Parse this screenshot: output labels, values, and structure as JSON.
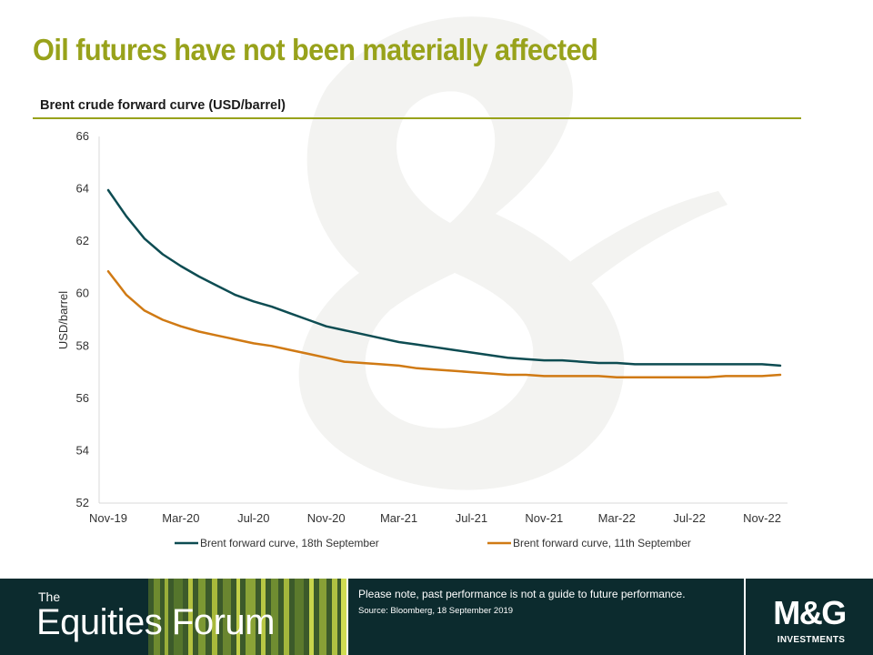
{
  "slide": {
    "title": "Oil futures have not been materially affected",
    "chart_heading": "Brent crude forward curve (USD/barrel)"
  },
  "chart_data": {
    "type": "line",
    "ylabel": "USD/barrel",
    "ylim": [
      52,
      66
    ],
    "yticks": [
      52,
      54,
      56,
      58,
      60,
      62,
      64,
      66
    ],
    "xticks": [
      "Nov-19",
      "Mar-20",
      "Jul-20",
      "Nov-20",
      "Mar-21",
      "Jul-21",
      "Nov-21",
      "Mar-22",
      "Jul-22",
      "Nov-22"
    ],
    "x": [
      "Nov-19",
      "Dec-19",
      "Jan-20",
      "Feb-20",
      "Mar-20",
      "Apr-20",
      "May-20",
      "Jun-20",
      "Jul-20",
      "Aug-20",
      "Sep-20",
      "Oct-20",
      "Nov-20",
      "Dec-20",
      "Jan-21",
      "Feb-21",
      "Mar-21",
      "Apr-21",
      "May-21",
      "Jun-21",
      "Jul-21",
      "Aug-21",
      "Sep-21",
      "Oct-21",
      "Nov-21",
      "Dec-21",
      "Jan-22",
      "Feb-22",
      "Mar-22",
      "Apr-22",
      "May-22",
      "Jun-22",
      "Jul-22",
      "Aug-22",
      "Sep-22",
      "Oct-22",
      "Nov-22",
      "Dec-22"
    ],
    "series": [
      {
        "name": "Brent forward curve, 18th September",
        "color": "#0d4c52",
        "values": [
          63.95,
          62.95,
          62.1,
          61.5,
          61.05,
          60.65,
          60.3,
          59.95,
          59.7,
          59.5,
          59.25,
          59.0,
          58.75,
          58.6,
          58.45,
          58.3,
          58.15,
          58.05,
          57.95,
          57.85,
          57.75,
          57.65,
          57.55,
          57.5,
          57.45,
          57.45,
          57.4,
          57.35,
          57.35,
          57.3,
          57.3,
          57.3,
          57.3,
          57.3,
          57.3,
          57.3,
          57.3,
          57.25
        ]
      },
      {
        "name": "Brent forward curve, 11th September",
        "color": "#d07a14",
        "values": [
          60.85,
          59.95,
          59.35,
          59.0,
          58.75,
          58.55,
          58.4,
          58.25,
          58.1,
          58.0,
          57.85,
          57.7,
          57.55,
          57.4,
          57.35,
          57.3,
          57.25,
          57.15,
          57.1,
          57.05,
          57.0,
          56.95,
          56.9,
          56.9,
          56.85,
          56.85,
          56.85,
          56.85,
          56.8,
          56.8,
          56.8,
          56.8,
          56.8,
          56.8,
          56.85,
          56.85,
          56.85,
          56.9
        ]
      }
    ],
    "legend_position": "bottom",
    "grid": false
  },
  "footer": {
    "brand_small": "The",
    "brand_big": "Equities Forum",
    "disclaimer": "Please note, past performance  is not a guide to future performance.",
    "source": "Source: Bloomberg, 18 September 2019",
    "logo_text": "M&G",
    "logo_subtext": "INVESTMENTS"
  }
}
